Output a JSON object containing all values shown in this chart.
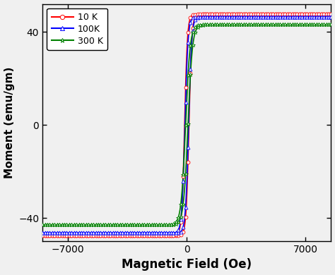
{
  "title": "",
  "xlabel": "Magnetic Field (Oe)",
  "ylabel": "Moment (emu/gm)",
  "xlim": [
    -8500,
    8500
  ],
  "ylim": [
    -50,
    52
  ],
  "xticks": [
    -7000,
    0,
    7000
  ],
  "yticks": [
    -40,
    0,
    40
  ],
  "series": [
    {
      "label": "10 K",
      "color": "#ff0000",
      "marker": "o",
      "Ms": 47.5,
      "Hc": 130,
      "steepness": 0.006,
      "sat_field": 2500
    },
    {
      "label": "100K",
      "color": "#0000ff",
      "marker": "^",
      "Ms": 46.5,
      "Hc": 110,
      "steepness": 0.0055,
      "sat_field": 2700
    },
    {
      "label": "300 K",
      "color": "#008000",
      "marker": "*",
      "Ms": 43.0,
      "Hc": 70,
      "steepness": 0.0038,
      "sat_field": 3500
    }
  ],
  "legend_loc": "upper left",
  "background_color": "#f0f0f0",
  "n_line_points": 3000,
  "n_marker_points": 120,
  "marker_size_o": 3.5,
  "marker_size_tri": 3.5,
  "marker_size_star": 4.0,
  "line_width": 1.2
}
